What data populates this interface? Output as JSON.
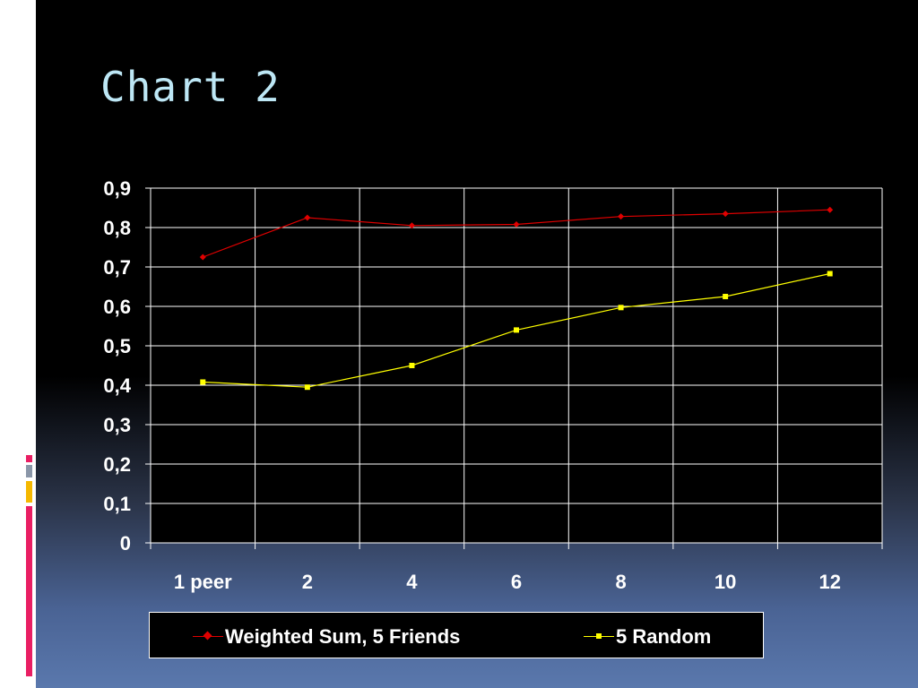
{
  "slide": {
    "title": "Chart 2"
  },
  "colors": {
    "background": "#000000",
    "grid": "#ffffff",
    "text": "#ffffff",
    "title": "#bde7f5",
    "accent_strip": [
      "#e91e63",
      "#8a96a8",
      "#f5b800",
      "#e91e63"
    ]
  },
  "chart_data": {
    "type": "line",
    "title": "",
    "xlabel": "",
    "ylabel": "",
    "categories": [
      "1 peer",
      "2",
      "4",
      "6",
      "8",
      "10",
      "12"
    ],
    "ylim": [
      0,
      0.9
    ],
    "yticks": [
      "0",
      "0,1",
      "0,2",
      "0,3",
      "0,4",
      "0,5",
      "0,6",
      "0,7",
      "0,8",
      "0,9"
    ],
    "grid": true,
    "legend_position": "bottom",
    "series": [
      {
        "name": "Weighted Sum, 5 Friends",
        "color": "#e00000",
        "marker": "diamond",
        "values": [
          0.725,
          0.825,
          0.805,
          0.808,
          0.828,
          0.835,
          0.845
        ]
      },
      {
        "name": "5 Random",
        "color": "#ffff00",
        "marker": "square",
        "values": [
          0.408,
          0.395,
          0.45,
          0.54,
          0.597,
          0.625,
          0.683
        ]
      }
    ]
  }
}
